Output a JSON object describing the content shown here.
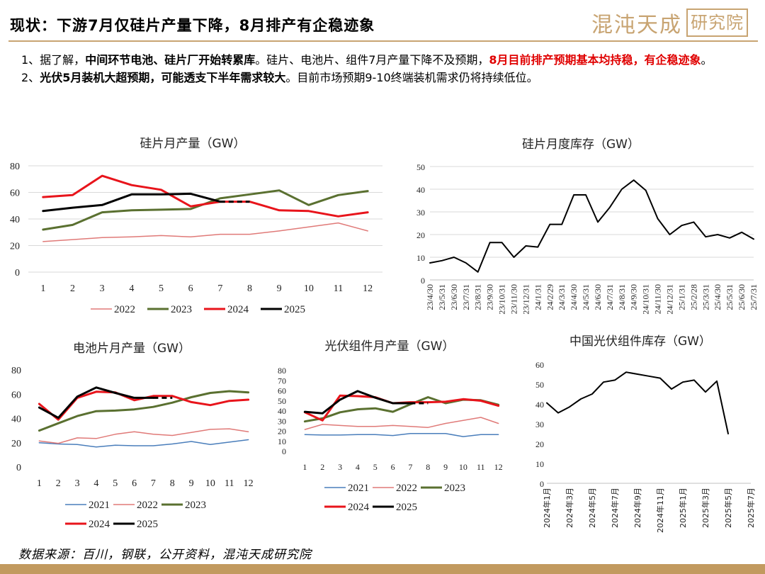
{
  "header": {
    "title": "现状：下游7月仅硅片产量下降，8月排产有企稳迹象",
    "brand": "混沌天成",
    "brand_box": "研究院"
  },
  "bullets": {
    "b1_a": "1、据了解，",
    "b1_b": "中间环节电池、硅片厂开始转累库",
    "b1_c": "。硅片、电池片、组件7月产量下降不及预期，",
    "b1_d": "8月目前排产预期基本均持稳，有企稳迹象",
    "b1_e": "。",
    "b2_a": "2、",
    "b2_b": "光伏5月装机大超预期，可能透支下半年需求较大",
    "b2_c": "。目前市场预期9-10终端装机需求仍将持续低位。"
  },
  "footer": {
    "source": "数据来源：百川，钢联，公开资料，混沌天成研究院"
  },
  "chart_data": [
    {
      "id": "wafer-output",
      "type": "line",
      "title": "硅片月产量（GW）",
      "x": [
        1,
        2,
        3,
        4,
        5,
        6,
        7,
        8,
        9,
        10,
        11,
        12
      ],
      "ylim": [
        0,
        80
      ],
      "yticks": [
        0,
        20,
        40,
        60,
        80
      ],
      "series": [
        {
          "name": "2022",
          "color": "#e07a78",
          "width": 1.5,
          "dash": false,
          "values": [
            23,
            24.5,
            26,
            26.5,
            27.5,
            26.5,
            28.5,
            28.5,
            31,
            34,
            37,
            31
          ]
        },
        {
          "name": "2023",
          "color": "#5a7030",
          "width": 3,
          "dash": false,
          "values": [
            32,
            35.5,
            45,
            46.5,
            47,
            47.5,
            55.5,
            58.5,
            61.5,
            50.5,
            58,
            61
          ]
        },
        {
          "name": "2024",
          "color": "#e8141b",
          "width": 3,
          "dash": false,
          "values": [
            56.5,
            58,
            72.5,
            65.5,
            62,
            49.5,
            53,
            53,
            46.5,
            46,
            42,
            45
          ]
        },
        {
          "name": "2025",
          "color": "#000000",
          "width": 3,
          "dash": false,
          "values": [
            46,
            48.5,
            50.5,
            58.5,
            58.5,
            59,
            53,
            null,
            null,
            null,
            null,
            null
          ]
        },
        {
          "name": "",
          "color": "#000000",
          "width": 3,
          "dash": true,
          "values": [
            null,
            null,
            null,
            null,
            null,
            null,
            53,
            53,
            null,
            null,
            null,
            null
          ]
        }
      ]
    },
    {
      "id": "wafer-inventory",
      "type": "line",
      "title": "硅片月度库存（GW）",
      "ylim": [
        0,
        50
      ],
      "yticks": [
        0,
        10,
        20,
        30,
        40,
        50
      ],
      "x": [
        "23/4/30",
        "23/5/31",
        "23/6/30",
        "23/7/31",
        "23/8/31",
        "23/9/30",
        "23/10/31",
        "23/11/30",
        "23/12/31",
        "24/1/31",
        "24/2/29",
        "24/3/31",
        "24/4/30",
        "24/5/31",
        "24/6/30",
        "24/7/31",
        "24/8/31",
        "24/9/30",
        "24/10/31",
        "24/11/30",
        "24/12/31",
        "25/1/31",
        "25/2/28",
        "25/3/31",
        "25/4/30",
        "25/5/31",
        "25/6/30",
        "25/7/31"
      ],
      "series": [
        {
          "name": "",
          "color": "#000000",
          "width": 2,
          "dash": false,
          "values": [
            7.5,
            8.5,
            10,
            7.5,
            3.5,
            16.5,
            16.5,
            10,
            15,
            14.5,
            24.5,
            24.5,
            37.5,
            37.5,
            25.5,
            32,
            40,
            44,
            39.5,
            27,
            20,
            24,
            25.5,
            19,
            20,
            18.5,
            21,
            18
          ]
        }
      ]
    },
    {
      "id": "cell-output",
      "type": "line",
      "title": "电池片月产量（GW）",
      "x": [
        1,
        2,
        3,
        4,
        5,
        6,
        7,
        8,
        9,
        10,
        11,
        12
      ],
      "ylim": [
        0,
        80
      ],
      "yticks": [
        0,
        20,
        40,
        60,
        80
      ],
      "series": [
        {
          "name": "2021",
          "color": "#4a7ebb",
          "width": 1.5,
          "dash": false,
          "values": [
            20,
            19,
            18.5,
            16.5,
            18,
            17.5,
            17.5,
            19,
            21,
            18.5,
            20.5,
            22.5
          ]
        },
        {
          "name": "2022",
          "color": "#e07a78",
          "width": 1.5,
          "dash": false,
          "values": [
            21.5,
            19.5,
            24,
            23.5,
            27,
            29,
            27,
            26,
            28.5,
            31,
            31.5,
            29
          ]
        },
        {
          "name": "2023",
          "color": "#5a7030",
          "width": 3,
          "dash": false,
          "values": [
            30,
            36,
            42,
            46,
            46.5,
            47.5,
            49.5,
            53,
            57.5,
            61,
            62.5,
            61.5
          ]
        },
        {
          "name": "2024",
          "color": "#e8141b",
          "width": 3,
          "dash": false,
          "values": [
            52,
            39,
            57,
            62,
            61.5,
            55,
            58.5,
            58.5,
            53.5,
            51,
            54.5,
            55.5
          ]
        },
        {
          "name": "2025",
          "color": "#000000",
          "width": 3,
          "dash": false,
          "values": [
            49,
            40.5,
            58,
            65.5,
            61,
            57,
            57,
            null,
            null,
            null,
            null,
            null
          ]
        },
        {
          "name": "",
          "color": "#000000",
          "width": 3,
          "dash": true,
          "values": [
            null,
            null,
            null,
            null,
            null,
            null,
            57,
            57,
            null,
            null,
            null,
            null
          ]
        }
      ]
    },
    {
      "id": "module-output",
      "type": "line",
      "title": "光伏组件月产量（GW）",
      "x": [
        1,
        2,
        3,
        4,
        5,
        6,
        7,
        8,
        9,
        10,
        11,
        12
      ],
      "ylim": [
        0,
        80
      ],
      "yticks": [
        0,
        10,
        20,
        30,
        40,
        50,
        60,
        70,
        80
      ],
      "series": [
        {
          "name": "2021",
          "color": "#4a7ebb",
          "width": 1.5,
          "dash": false,
          "values": [
            16,
            15.5,
            15.5,
            16,
            16,
            15,
            17,
            17,
            17,
            14,
            16,
            16
          ]
        },
        {
          "name": "2022",
          "color": "#e07a78",
          "width": 1.5,
          "dash": false,
          "values": [
            21,
            26,
            25,
            24,
            24,
            25,
            24,
            23,
            27,
            30,
            33,
            27
          ]
        },
        {
          "name": "2023",
          "color": "#5a7030",
          "width": 3,
          "dash": false,
          "values": [
            29,
            32,
            38,
            41,
            42,
            38.5,
            46,
            53,
            47,
            50.5,
            50,
            45.5
          ]
        },
        {
          "name": "2024",
          "color": "#e8141b",
          "width": 3,
          "dash": false,
          "values": [
            38,
            30,
            54.5,
            54,
            53,
            47,
            48,
            48,
            48.5,
            51,
            49.5,
            44.5
          ]
        },
        {
          "name": "2025",
          "color": "#000000",
          "width": 3,
          "dash": false,
          "values": [
            38.5,
            37,
            50.5,
            59,
            52.5,
            47,
            47,
            null,
            null,
            null,
            null,
            null
          ]
        },
        {
          "name": "",
          "color": "#000000",
          "width": 3,
          "dash": true,
          "values": [
            null,
            null,
            null,
            null,
            null,
            null,
            47,
            47,
            null,
            null,
            null,
            null
          ]
        }
      ]
    },
    {
      "id": "module-inventory",
      "type": "line",
      "title": "中国光伏组件库存（GW）",
      "ylim": [
        0,
        60
      ],
      "yticks": [
        0,
        10,
        20,
        30,
        40,
        50,
        60
      ],
      "x": [
        "2024年1月",
        "2024年2月",
        "2024年3月",
        "2024年4月",
        "2024年5月",
        "2024年6月",
        "2024年7月",
        "2024年8月",
        "2024年9月",
        "2024年10月",
        "2024年11月",
        "2024年12月",
        "2025年1月",
        "2025年2月",
        "2025年3月",
        "2025年4月",
        "2025年5月",
        "2025年6月",
        "2025年7月"
      ],
      "x_labels_shown": [
        "2024年1月",
        "2024年3月",
        "2024年5月",
        "2024年7月",
        "2024年9月",
        "2024年11月",
        "2025年1月",
        "2025年3月",
        "2025年5月",
        "2025年7月"
      ],
      "series": [
        {
          "name": "",
          "color": "#000000",
          "width": 2,
          "dash": false,
          "values": [
            40.5,
            35.5,
            38.5,
            42.5,
            45,
            51,
            52,
            56,
            55,
            54,
            53,
            47.5,
            51,
            52,
            46,
            51.5,
            25,
            null,
            null
          ]
        }
      ]
    }
  ]
}
